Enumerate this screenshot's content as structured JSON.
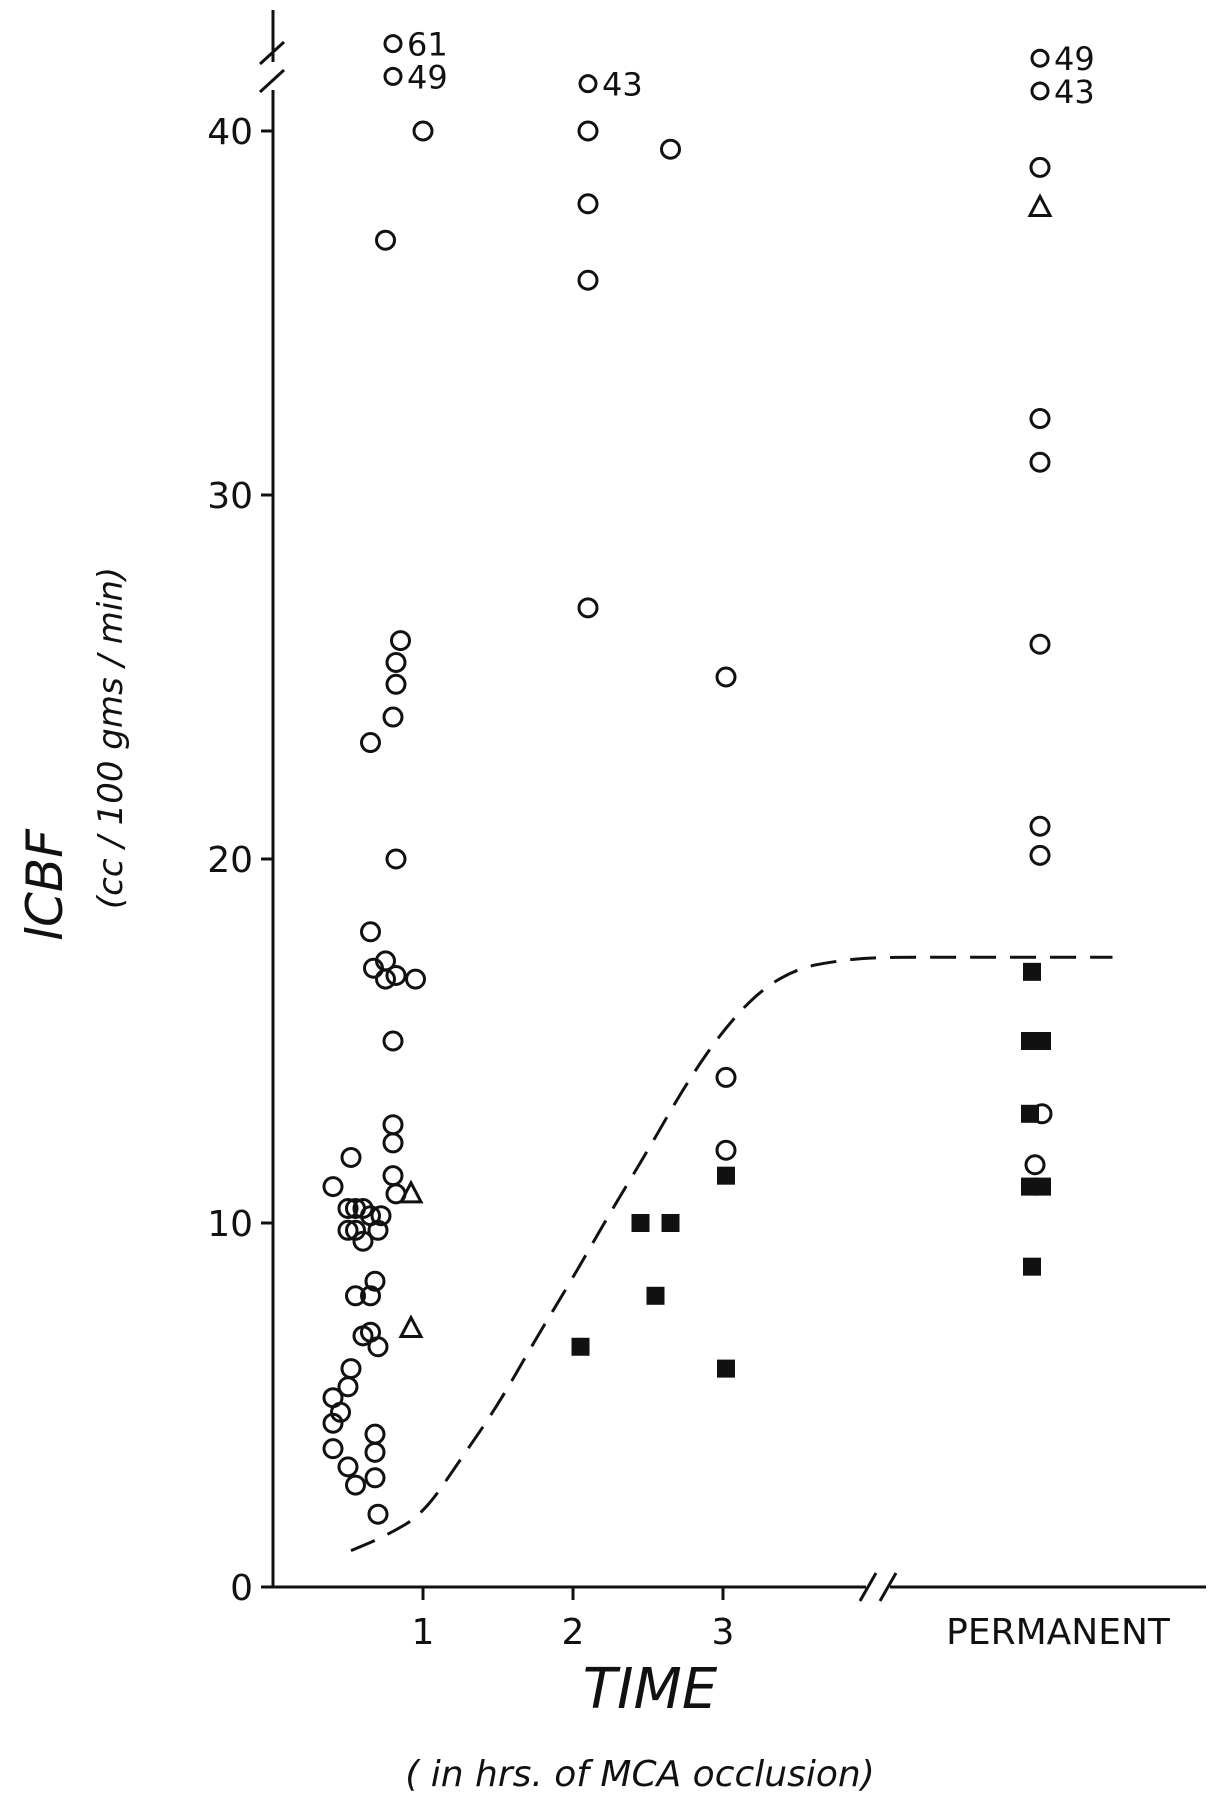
{
  "chart_data": {
    "type": "scatter",
    "title": "",
    "ylabel": "lCBF",
    "ylabel_units": "(cc / 100 gms / min)",
    "xlabel": "TIME",
    "xlabel_sub": "( in hrs. of MCA occlusion)",
    "ylim": [
      0,
      43
    ],
    "yticks": [
      0,
      10,
      20,
      30,
      40
    ],
    "xticks": [
      {
        "label": "1",
        "x": 1
      },
      {
        "label": "2",
        "x": 2
      },
      {
        "label": "3",
        "x": 3
      },
      {
        "label": "PERMANENT",
        "x": 5
      }
    ],
    "axis_breaks": [
      "y-axis above 40",
      "x-axis between 3 and PERMANENT"
    ],
    "series": [
      {
        "marker": "open-circle",
        "points": [
          [
            0.4,
            5.2
          ],
          [
            0.4,
            4.5
          ],
          [
            0.4,
            3.8
          ],
          [
            0.45,
            4.8
          ],
          [
            0.5,
            5.5
          ],
          [
            0.5,
            3.3
          ],
          [
            0.52,
            6
          ],
          [
            0.55,
            2.8
          ],
          [
            0.4,
            11
          ],
          [
            0.52,
            11.8
          ],
          [
            0.5,
            10.4
          ],
          [
            0.5,
            9.8
          ],
          [
            0.55,
            10.4
          ],
          [
            0.55,
            9.8
          ],
          [
            0.6,
            10.4
          ],
          [
            0.6,
            9.5
          ],
          [
            0.65,
            10.2
          ],
          [
            0.7,
            9.8
          ],
          [
            0.72,
            10.2
          ],
          [
            0.55,
            8
          ],
          [
            0.65,
            8
          ],
          [
            0.68,
            8.4
          ],
          [
            0.6,
            6.9
          ],
          [
            0.65,
            7
          ],
          [
            0.7,
            6.6
          ],
          [
            0.68,
            4.2
          ],
          [
            0.68,
            3.7
          ],
          [
            0.68,
            3
          ],
          [
            0.7,
            2
          ],
          [
            0.65,
            18
          ],
          [
            0.67,
            17
          ],
          [
            0.75,
            17.2
          ],
          [
            0.75,
            16.7
          ],
          [
            0.82,
            16.8
          ],
          [
            0.95,
            16.7
          ],
          [
            0.8,
            15
          ],
          [
            0.8,
            12.7
          ],
          [
            0.8,
            12.2
          ],
          [
            0.8,
            11.3
          ],
          [
            0.82,
            10.8
          ],
          [
            0.65,
            23.2
          ],
          [
            0.8,
            23.9
          ],
          [
            0.82,
            24.8
          ],
          [
            0.82,
            25.4
          ],
          [
            0.85,
            26
          ],
          [
            0.82,
            20
          ],
          [
            0.75,
            37
          ],
          [
            1,
            40
          ]
        ]
      },
      {
        "marker": "open-triangle",
        "points": [
          [
            0.92,
            10.8
          ],
          [
            0.92,
            7.1
          ],
          [
            5.1,
            37.9
          ]
        ]
      },
      {
        "marker": "open-circle",
        "points": [
          [
            2.1,
            40
          ],
          [
            2.1,
            38
          ],
          [
            2.1,
            35.9
          ],
          [
            2.1,
            26.9
          ],
          [
            2.65,
            39.5
          ],
          [
            3.02,
            25
          ],
          [
            3.02,
            14
          ],
          [
            3.02,
            12
          ]
        ]
      },
      {
        "marker": "filled-square",
        "points": [
          [
            2.05,
            6.6
          ],
          [
            2.45,
            10
          ],
          [
            2.65,
            10
          ],
          [
            2.55,
            8
          ],
          [
            3.02,
            11.3
          ],
          [
            3.02,
            6
          ]
        ]
      },
      {
        "marker": "open-circle",
        "points": [
          [
            5.1,
            39
          ],
          [
            5.1,
            32.1
          ],
          [
            5.1,
            30.9
          ],
          [
            5.1,
            25.9
          ],
          [
            5.1,
            20.9
          ],
          [
            5.1,
            20.1
          ],
          [
            5.12,
            13
          ],
          [
            5.05,
            11.6
          ]
        ]
      },
      {
        "marker": "filled-square",
        "points": [
          [
            5.02,
            16.9
          ],
          [
            5.0,
            15
          ],
          [
            5.12,
            15
          ],
          [
            5.0,
            13
          ],
          [
            5.0,
            11
          ],
          [
            5.12,
            11
          ],
          [
            5.02,
            8.8
          ]
        ]
      }
    ],
    "annotations": [
      {
        "text": "61",
        "x": 0.8,
        "y": 42.4
      },
      {
        "text": "49",
        "x": 0.8,
        "y": 41.5
      },
      {
        "text": "43",
        "x": 2.1,
        "y": 41.3
      },
      {
        "text": "49",
        "x": 5.1,
        "y": 42
      },
      {
        "text": "43",
        "x": 5.1,
        "y": 41.1
      }
    ],
    "curve": {
      "style": "dashed",
      "points": [
        [
          0.52,
          1
        ],
        [
          0.75,
          1.4
        ],
        [
          1,
          2
        ],
        [
          1.25,
          3.5
        ],
        [
          1.5,
          5
        ],
        [
          1.75,
          6.8
        ],
        [
          2,
          8.5
        ],
        [
          2.25,
          10.3
        ],
        [
          2.5,
          12
        ],
        [
          2.75,
          13.8
        ],
        [
          3,
          15.3
        ],
        [
          3.25,
          16.4
        ],
        [
          3.5,
          17
        ],
        [
          3.75,
          17.2
        ],
        [
          4,
          17.3
        ],
        [
          4.5,
          17.3
        ],
        [
          5,
          17.3
        ],
        [
          5.5,
          17.3
        ]
      ]
    }
  }
}
